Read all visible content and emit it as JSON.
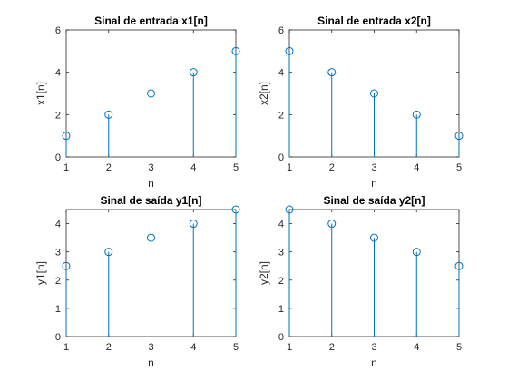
{
  "chart_data": [
    {
      "type": "stem",
      "title": "Sinal de entrada x1[n]",
      "xlabel": "n",
      "ylabel": "x1[n]",
      "x": [
        1,
        2,
        3,
        4,
        5
      ],
      "y": [
        1,
        2,
        3,
        4,
        5
      ],
      "xlim": [
        1,
        5
      ],
      "ylim": [
        0,
        6
      ],
      "xticks": [
        "1",
        "2",
        "3",
        "4",
        "5"
      ],
      "yticks": [
        "0",
        "2",
        "4",
        "6"
      ],
      "color": "#0072BD",
      "grid": false
    },
    {
      "type": "stem",
      "title": "Sinal de entrada x2[n]",
      "xlabel": "n",
      "ylabel": "x2[n]",
      "x": [
        1,
        2,
        3,
        4,
        5
      ],
      "y": [
        5,
        4,
        3,
        2,
        1
      ],
      "xlim": [
        1,
        5
      ],
      "ylim": [
        0,
        6
      ],
      "xticks": [
        "1",
        "2",
        "3",
        "4",
        "5"
      ],
      "yticks": [
        "0",
        "2",
        "4",
        "6"
      ],
      "color": "#0072BD",
      "grid": false
    },
    {
      "type": "stem",
      "title": "Sinal de saída y1[n]",
      "xlabel": "n",
      "ylabel": "y1[n]",
      "x": [
        1,
        2,
        3,
        4,
        5
      ],
      "y": [
        2.5,
        3,
        3.5,
        4,
        4.5
      ],
      "xlim": [
        1,
        5
      ],
      "ylim": [
        0,
        4.5
      ],
      "xticks": [
        "1",
        "2",
        "3",
        "4",
        "5"
      ],
      "yticks": [
        "0",
        "1",
        "2",
        "3",
        "4"
      ],
      "color": "#0072BD",
      "grid": false
    },
    {
      "type": "stem",
      "title": "Sinal de saída y2[n]",
      "xlabel": "n",
      "ylabel": "y2[n]",
      "x": [
        1,
        2,
        3,
        4,
        5
      ],
      "y": [
        4.5,
        4,
        3.5,
        3,
        2.5
      ],
      "xlim": [
        1,
        5
      ],
      "ylim": [
        0,
        4.5
      ],
      "xticks": [
        "1",
        "2",
        "3",
        "4",
        "5"
      ],
      "yticks": [
        "0",
        "1",
        "2",
        "3",
        "4"
      ],
      "color": "#0072BD",
      "grid": false
    }
  ]
}
